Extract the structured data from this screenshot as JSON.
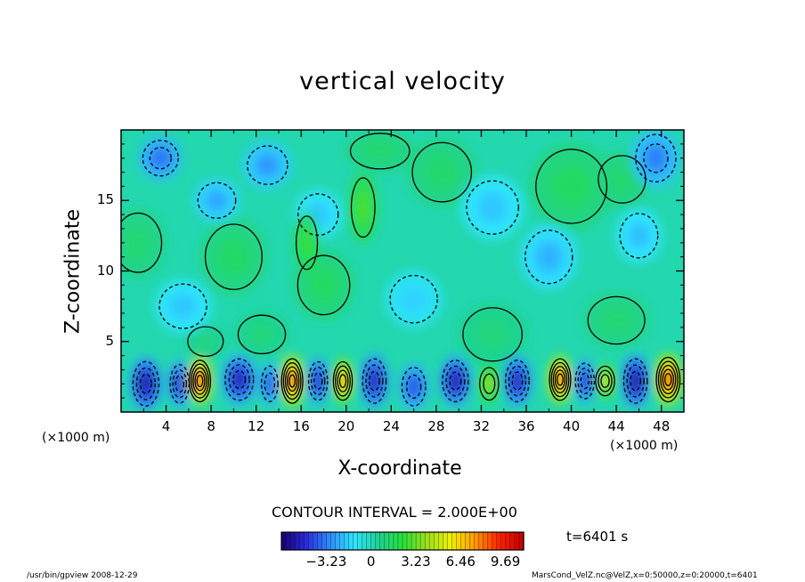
{
  "chart_data": {
    "type": "heatmap",
    "title": "vertical velocity",
    "xlabel": "X-coordinate",
    "ylabel": "Z-coordinate",
    "x_unit_left": "(×1000 m)",
    "x_unit_right": "(×1000 m)",
    "xlim": [
      0,
      50
    ],
    "ylim": [
      0,
      20
    ],
    "x_ticks": [
      "4",
      "8",
      "12",
      "16",
      "20",
      "24",
      "28",
      "32",
      "36",
      "40",
      "44",
      "48"
    ],
    "y_ticks": [
      "5",
      "10",
      "15"
    ],
    "contour_interval_label": "CONTOUR INTERVAL = 2.000E+00",
    "time_label": "t=6401 s",
    "colorbar_ticks": [
      "−3.23",
      "0",
      "3.23",
      "6.46",
      "9.69"
    ],
    "colorbar_range": [
      -6.46,
      11.0
    ],
    "colormap": [
      "#14006e",
      "#2a2ad8",
      "#2f8cff",
      "#2ee6ff",
      "#1fd296",
      "#27e03b",
      "#9be01a",
      "#f0f000",
      "#ff9900",
      "#ff2200",
      "#c00000"
    ],
    "cells": [
      {
        "x": 7.0,
        "z": 2.2,
        "v": 9.7,
        "sx": 0.9,
        "sz": 1.4
      },
      {
        "x": 15.2,
        "z": 2.2,
        "v": 9.5,
        "sx": 0.9,
        "sz": 1.5
      },
      {
        "x": 19.7,
        "z": 2.2,
        "v": 7.5,
        "sx": 0.8,
        "sz": 1.3
      },
      {
        "x": 32.7,
        "z": 2.0,
        "v": 4.0,
        "sx": 0.8,
        "sz": 1.1
      },
      {
        "x": 39.0,
        "z": 2.3,
        "v": 9.0,
        "sx": 0.9,
        "sz": 1.4
      },
      {
        "x": 48.6,
        "z": 2.3,
        "v": 9.7,
        "sx": 1.0,
        "sz": 1.5
      },
      {
        "x": 43.0,
        "z": 2.2,
        "v": 5.0,
        "sx": 0.8,
        "sz": 1.0
      },
      {
        "x": 2.2,
        "z": 2.0,
        "v": -6.2,
        "sx": 1.1,
        "sz": 1.5
      },
      {
        "x": 5.2,
        "z": 2.0,
        "v": -5.2,
        "sx": 0.8,
        "sz": 1.3
      },
      {
        "x": 10.5,
        "z": 2.3,
        "v": -5.8,
        "sx": 1.2,
        "sz": 1.4
      },
      {
        "x": 13.2,
        "z": 2.0,
        "v": -4.5,
        "sx": 0.7,
        "sz": 1.2
      },
      {
        "x": 17.5,
        "z": 2.2,
        "v": -5.2,
        "sx": 0.8,
        "sz": 1.3
      },
      {
        "x": 22.5,
        "z": 2.2,
        "v": -5.5,
        "sx": 1.0,
        "sz": 1.5
      },
      {
        "x": 26.0,
        "z": 1.8,
        "v": -4.5,
        "sx": 1.0,
        "sz": 1.3
      },
      {
        "x": 29.7,
        "z": 2.2,
        "v": -6.0,
        "sx": 1.1,
        "sz": 1.4
      },
      {
        "x": 35.2,
        "z": 2.2,
        "v": -5.5,
        "sx": 1.0,
        "sz": 1.4
      },
      {
        "x": 41.2,
        "z": 2.2,
        "v": -5.0,
        "sx": 0.8,
        "sz": 1.2
      },
      {
        "x": 45.7,
        "z": 2.2,
        "v": -6.3,
        "sx": 1.0,
        "sz": 1.5
      },
      {
        "x": 3.5,
        "z": 18.0,
        "v": -3.5,
        "sx": 1.5,
        "sz": 1.2
      },
      {
        "x": 8.5,
        "z": 15.0,
        "v": -2.5,
        "sx": 1.6,
        "sz": 1.2
      },
      {
        "x": 13.0,
        "z": 17.5,
        "v": -2.8,
        "sx": 1.7,
        "sz": 1.3
      },
      {
        "x": 47.5,
        "z": 18.0,
        "v": -3.2,
        "sx": 1.7,
        "sz": 1.6
      },
      {
        "x": 46.0,
        "z": 12.5,
        "v": -2.0,
        "sx": 1.6,
        "sz": 1.5
      },
      {
        "x": 38.0,
        "z": 11.0,
        "v": -2.2,
        "sx": 2.0,
        "sz": 1.8
      },
      {
        "x": 33.0,
        "z": 14.5,
        "v": -1.8,
        "sx": 2.2,
        "sz": 1.8
      },
      {
        "x": 17.5,
        "z": 14.0,
        "v": -1.8,
        "sx": 1.7,
        "sz": 1.4
      },
      {
        "x": 5.5,
        "z": 7.5,
        "v": -1.8,
        "sx": 2.0,
        "sz": 1.5
      },
      {
        "x": 26.0,
        "z": 8.0,
        "v": -1.6,
        "sx": 2.0,
        "sz": 1.6
      },
      {
        "x": 10.0,
        "z": 11.0,
        "v": 1.4,
        "sx": 2.4,
        "sz": 2.2
      },
      {
        "x": 18.0,
        "z": 9.0,
        "v": 1.5,
        "sx": 2.2,
        "sz": 2.0
      },
      {
        "x": 21.5,
        "z": 14.5,
        "v": 2.8,
        "sx": 1.0,
        "sz": 2.0
      },
      {
        "x": 16.5,
        "z": 12.0,
        "v": 2.5,
        "sx": 0.9,
        "sz": 1.8
      },
      {
        "x": 23.0,
        "z": 18.5,
        "v": 1.3,
        "sx": 2.5,
        "sz": 1.2
      },
      {
        "x": 28.5,
        "z": 17.0,
        "v": 1.3,
        "sx": 2.5,
        "sz": 2.0
      },
      {
        "x": 33.0,
        "z": 5.5,
        "v": 1.0,
        "sx": 2.5,
        "sz": 1.8
      },
      {
        "x": 40.0,
        "z": 16.0,
        "v": 1.5,
        "sx": 3.0,
        "sz": 2.5
      },
      {
        "x": 44.0,
        "z": 6.5,
        "v": 1.2,
        "sx": 2.4,
        "sz": 1.6
      },
      {
        "x": 1.5,
        "z": 12.0,
        "v": 1.2,
        "sx": 2.0,
        "sz": 2.0
      },
      {
        "x": 44.5,
        "z": 16.5,
        "v": 1.3,
        "sx": 2.0,
        "sz": 1.6
      },
      {
        "x": 12.5,
        "z": 5.5,
        "v": 1.0,
        "sx": 2.0,
        "sz": 1.3
      },
      {
        "x": 7.5,
        "z": 5.0,
        "v": 0.9,
        "sx": 1.5,
        "sz": 1.0
      }
    ]
  },
  "footer": {
    "left": "/usr/bin/gpview  2008-12-29",
    "right": "MarsCond_VelZ.nc@VelZ,x=0:50000,z=0:20000,t=6401"
  }
}
